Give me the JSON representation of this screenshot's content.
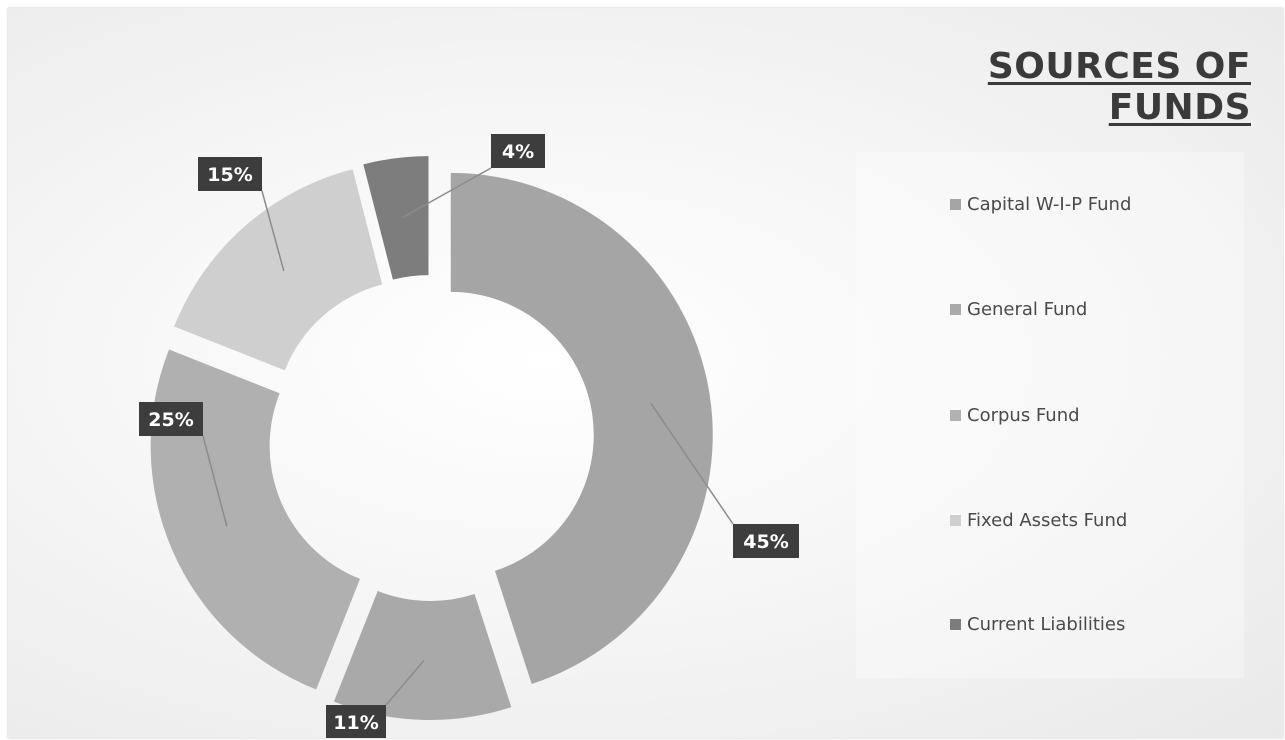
{
  "chart_data": {
    "type": "pie",
    "donut": true,
    "title": "SOURCES OF FUNDS",
    "legend_position": "right",
    "slices": [
      {
        "name": "Capital W-I-P Fund",
        "value": 45,
        "label": "45%",
        "color": "#a5a5a5"
      },
      {
        "name": "General Fund",
        "value": 11,
        "label": "11%",
        "color": "#a9a9a9"
      },
      {
        "name": "Corpus Fund",
        "value": 25,
        "label": "25%",
        "color": "#b0b0b0"
      },
      {
        "name": "Fixed Assets Fund",
        "value": 15,
        "label": "15%",
        "color": "#cfcfcf"
      },
      {
        "name": "Current Liabilities",
        "value": 4,
        "label": "4%",
        "color": "#7d7d7d"
      }
    ]
  },
  "colors": {
    "label_background": "#3d3d3d",
    "label_text": "#ffffff",
    "leader_line": "#8c8c8c"
  }
}
